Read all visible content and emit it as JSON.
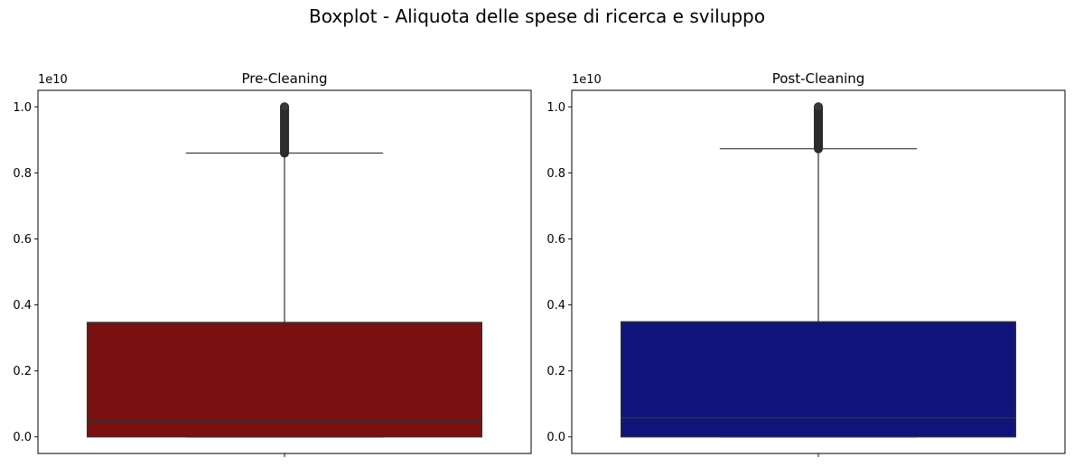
{
  "figure": {
    "title": "Boxplot - Aliquota delle spese di ricerca e sviluppo"
  },
  "chart_data": [
    {
      "type": "boxplot",
      "title": "Pre-Cleaning",
      "offset_label": "1e10",
      "ylim": [
        -0.05,
        1.05
      ],
      "yticks": [
        0.0,
        0.2,
        0.4,
        0.6,
        0.8,
        1.0
      ],
      "ytick_labels": [
        "0.0",
        "0.2",
        "0.4",
        "0.6",
        "0.8",
        "1.0"
      ],
      "box": {
        "min": 0.0,
        "q1": 0.0,
        "median": 0.05,
        "q3": 0.347,
        "whisker_high": 0.86,
        "outliers_range": [
          0.86,
          1.0
        ]
      },
      "color": "#7a1010"
    },
    {
      "type": "boxplot",
      "title": "Post-Cleaning",
      "offset_label": "1e10",
      "ylim": [
        -0.05,
        1.05
      ],
      "yticks": [
        0.0,
        0.2,
        0.4,
        0.6,
        0.8,
        1.0
      ],
      "ytick_labels": [
        "0.0",
        "0.2",
        "0.4",
        "0.6",
        "0.8",
        "1.0"
      ],
      "box": {
        "min": 0.0,
        "q1": 0.0,
        "median": 0.058,
        "q3": 0.349,
        "whisker_high": 0.873,
        "outliers_range": [
          0.873,
          1.0
        ]
      },
      "color": "#10147a"
    }
  ]
}
